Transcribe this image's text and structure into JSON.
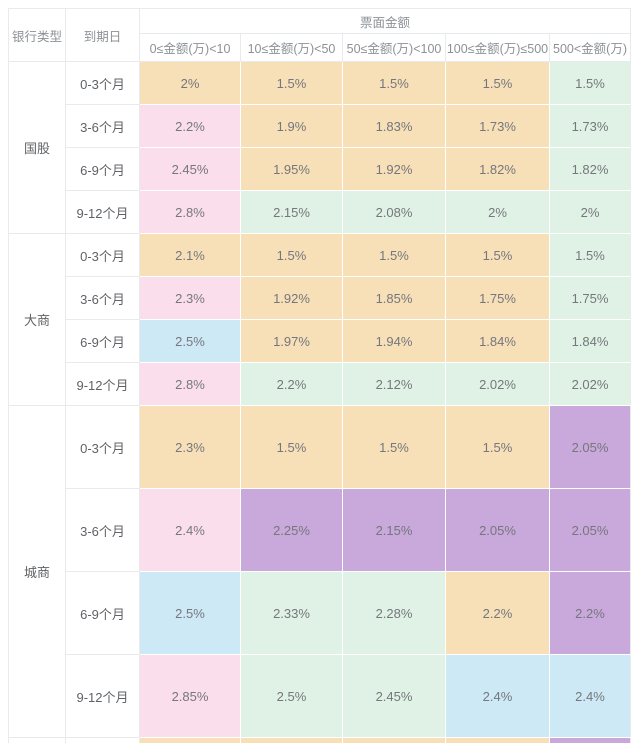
{
  "colors": {
    "orange": "#F7DFB8",
    "pink": "#FBDEEB",
    "green": "#DFF2E5",
    "blue": "#CDE9F6",
    "purple": "#C9A8DB",
    "grid_gray": "#E9EAEC",
    "header_text": "#8D9196",
    "label_text": "#5F6266",
    "value_text": "#75777C"
  },
  "chart_data": {
    "type": "table",
    "title": "票面金额",
    "corner_headers": [
      "银行类型",
      "到期日"
    ],
    "column_headers": [
      "0≤金额(万)<10",
      "10≤金额(万)<50",
      "50≤金额(万)<100",
      "100≤金额(万)≤500",
      "500<金额(万)"
    ],
    "groups": [
      {
        "bank_type": "国股",
        "rows": [
          {
            "maturity": "0-3个月",
            "values": [
              "2%",
              "1.5%",
              "1.5%",
              "1.5%",
              "1.5%"
            ],
            "cell_colors": [
              "orange",
              "orange",
              "orange",
              "orange",
              "green"
            ]
          },
          {
            "maturity": "3-6个月",
            "values": [
              "2.2%",
              "1.9%",
              "1.83%",
              "1.73%",
              "1.73%"
            ],
            "cell_colors": [
              "pink",
              "orange",
              "orange",
              "orange",
              "green"
            ]
          },
          {
            "maturity": "6-9个月",
            "values": [
              "2.45%",
              "1.95%",
              "1.92%",
              "1.82%",
              "1.82%"
            ],
            "cell_colors": [
              "pink",
              "orange",
              "orange",
              "orange",
              "green"
            ]
          },
          {
            "maturity": "9-12个月",
            "values": [
              "2.8%",
              "2.15%",
              "2.08%",
              "2%",
              "2%"
            ],
            "cell_colors": [
              "pink",
              "green",
              "green",
              "green",
              "green"
            ]
          }
        ]
      },
      {
        "bank_type": "大商",
        "rows": [
          {
            "maturity": "0-3个月",
            "values": [
              "2.1%",
              "1.5%",
              "1.5%",
              "1.5%",
              "1.5%"
            ],
            "cell_colors": [
              "orange",
              "orange",
              "orange",
              "orange",
              "green"
            ]
          },
          {
            "maturity": "3-6个月",
            "values": [
              "2.3%",
              "1.92%",
              "1.85%",
              "1.75%",
              "1.75%"
            ],
            "cell_colors": [
              "pink",
              "orange",
              "orange",
              "orange",
              "green"
            ]
          },
          {
            "maturity": "6-9个月",
            "values": [
              "2.5%",
              "1.97%",
              "1.94%",
              "1.84%",
              "1.84%"
            ],
            "cell_colors": [
              "blue",
              "orange",
              "orange",
              "orange",
              "green"
            ]
          },
          {
            "maturity": "9-12个月",
            "values": [
              "2.8%",
              "2.2%",
              "2.12%",
              "2.02%",
              "2.02%"
            ],
            "cell_colors": [
              "pink",
              "green",
              "green",
              "green",
              "green"
            ]
          }
        ]
      },
      {
        "bank_type": "城商",
        "rows": [
          {
            "maturity": "0-3个月",
            "values": [
              "2.3%",
              "1.5%",
              "1.5%",
              "1.5%",
              "2.05%"
            ],
            "cell_colors": [
              "orange",
              "orange",
              "orange",
              "orange",
              "purple"
            ]
          },
          {
            "maturity": "3-6个月",
            "values": [
              "2.4%",
              "2.25%",
              "2.15%",
              "2.05%",
              "2.05%"
            ],
            "cell_colors": [
              "pink",
              "purple",
              "purple",
              "purple",
              "purple"
            ]
          },
          {
            "maturity": "6-9个月",
            "values": [
              "2.5%",
              "2.33%",
              "2.28%",
              "2.2%",
              "2.2%"
            ],
            "cell_colors": [
              "blue",
              "green",
              "green",
              "orange",
              "purple"
            ]
          },
          {
            "maturity": "9-12个月",
            "values": [
              "2.85%",
              "2.5%",
              "2.45%",
              "2.4%",
              "2.4%"
            ],
            "cell_colors": [
              "pink",
              "green",
              "green",
              "blue",
              "blue"
            ]
          }
        ]
      }
    ],
    "partial_bottom_row_colors": [
      "orange",
      "orange",
      "orange",
      "orange",
      "purple"
    ]
  }
}
